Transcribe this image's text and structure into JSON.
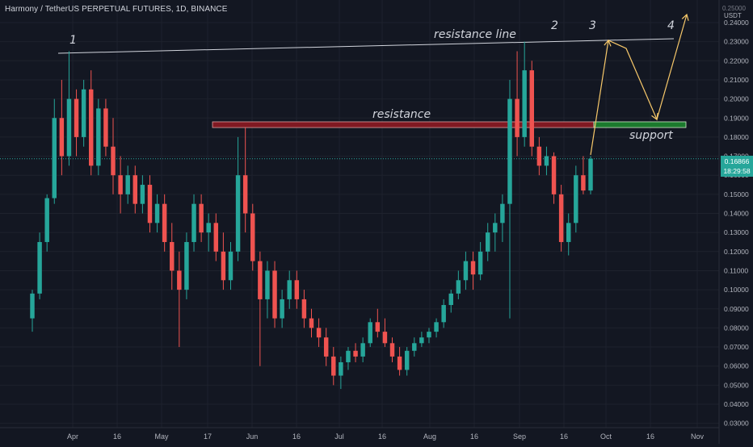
{
  "header": {
    "title": "Harmony / TetherUS PERPETUAL FUTURES, 1D, BINANCE"
  },
  "price_axis": {
    "unit": "USDT",
    "top_label": "0.25000",
    "last_price": "0.16866",
    "countdown": "18:29:58"
  },
  "colors": {
    "background": "#131722",
    "grid": "#1e222d",
    "up": "#26a69a",
    "down": "#ef5350",
    "annotation_arrow": "#f7c86a",
    "annotation_text": "#d1d4dc",
    "resistance_zone": "#801922",
    "support_zone": "#1b7a2d"
  },
  "annotations": {
    "wave_1": "1",
    "wave_2": "2",
    "wave_3": "3",
    "wave_4": "4",
    "resistance_line": "resistance line",
    "resistance": "resistance",
    "support": "support"
  },
  "chart_data": {
    "type": "candlestick",
    "title": "Harmony / TetherUS PERPETUAL FUTURES, 1D, BINANCE",
    "xlabel": "",
    "ylabel": "",
    "ylim": [
      0.03,
      0.25
    ],
    "y_ticks": [
      "0.24000",
      "0.23000",
      "0.22000",
      "0.21000",
      "0.20000",
      "0.19000",
      "0.18000",
      "0.17000",
      "0.16000",
      "0.15000",
      "0.14000",
      "0.13000",
      "0.12000",
      "0.11000",
      "0.10000",
      "0.09000",
      "0.08000",
      "0.07000",
      "0.06000",
      "0.05000",
      "0.04000",
      "0.03000"
    ],
    "x_ticks": [
      "Apr",
      "16",
      "May",
      "17",
      "Jun",
      "16",
      "Jul",
      "16",
      "Aug",
      "16",
      "Sep",
      "16",
      "Oct",
      "16",
      "Nov"
    ],
    "grid": true,
    "last_price": 0.16866,
    "resistance_line": {
      "from_price": 0.225,
      "to_price": 0.231
    },
    "resistance_zone": {
      "low": 0.185,
      "high": 0.188
    },
    "support_zone": {
      "low": 0.185,
      "high": 0.188
    },
    "candles_sampled": [
      {
        "o": 0.085,
        "h": 0.1,
        "l": 0.078,
        "c": 0.098
      },
      {
        "o": 0.098,
        "h": 0.13,
        "l": 0.095,
        "c": 0.125
      },
      {
        "o": 0.125,
        "h": 0.15,
        "l": 0.12,
        "c": 0.148
      },
      {
        "o": 0.148,
        "h": 0.2,
        "l": 0.145,
        "c": 0.19
      },
      {
        "o": 0.19,
        "h": 0.21,
        "l": 0.16,
        "c": 0.17
      },
      {
        "o": 0.17,
        "h": 0.225,
        "l": 0.165,
        "c": 0.2
      },
      {
        "o": 0.2,
        "h": 0.205,
        "l": 0.17,
        "c": 0.18
      },
      {
        "o": 0.18,
        "h": 0.21,
        "l": 0.175,
        "c": 0.205
      },
      {
        "o": 0.205,
        "h": 0.215,
        "l": 0.16,
        "c": 0.165
      },
      {
        "o": 0.165,
        "h": 0.2,
        "l": 0.16,
        "c": 0.195
      },
      {
        "o": 0.195,
        "h": 0.2,
        "l": 0.17,
        "c": 0.175
      },
      {
        "o": 0.175,
        "h": 0.19,
        "l": 0.15,
        "c": 0.16
      },
      {
        "o": 0.16,
        "h": 0.17,
        "l": 0.14,
        "c": 0.15
      },
      {
        "o": 0.15,
        "h": 0.165,
        "l": 0.145,
        "c": 0.16
      },
      {
        "o": 0.16,
        "h": 0.165,
        "l": 0.14,
        "c": 0.145
      },
      {
        "o": 0.145,
        "h": 0.16,
        "l": 0.14,
        "c": 0.155
      },
      {
        "o": 0.155,
        "h": 0.16,
        "l": 0.13,
        "c": 0.135
      },
      {
        "o": 0.135,
        "h": 0.15,
        "l": 0.13,
        "c": 0.145
      },
      {
        "o": 0.145,
        "h": 0.15,
        "l": 0.12,
        "c": 0.125
      },
      {
        "o": 0.125,
        "h": 0.135,
        "l": 0.1,
        "c": 0.11
      },
      {
        "o": 0.11,
        "h": 0.12,
        "l": 0.07,
        "c": 0.1
      },
      {
        "o": 0.1,
        "h": 0.13,
        "l": 0.095,
        "c": 0.125
      },
      {
        "o": 0.125,
        "h": 0.15,
        "l": 0.12,
        "c": 0.145
      },
      {
        "o": 0.145,
        "h": 0.15,
        "l": 0.125,
        "c": 0.13
      },
      {
        "o": 0.13,
        "h": 0.14,
        "l": 0.12,
        "c": 0.135
      },
      {
        "o": 0.135,
        "h": 0.14,
        "l": 0.115,
        "c": 0.12
      },
      {
        "o": 0.12,
        "h": 0.13,
        "l": 0.1,
        "c": 0.105
      },
      {
        "o": 0.105,
        "h": 0.125,
        "l": 0.1,
        "c": 0.12
      },
      {
        "o": 0.12,
        "h": 0.18,
        "l": 0.115,
        "c": 0.16
      },
      {
        "o": 0.16,
        "h": 0.185,
        "l": 0.13,
        "c": 0.14
      },
      {
        "o": 0.14,
        "h": 0.145,
        "l": 0.11,
        "c": 0.115
      },
      {
        "o": 0.115,
        "h": 0.12,
        "l": 0.06,
        "c": 0.095
      },
      {
        "o": 0.095,
        "h": 0.115,
        "l": 0.085,
        "c": 0.11
      },
      {
        "o": 0.11,
        "h": 0.115,
        "l": 0.08,
        "c": 0.085
      },
      {
        "o": 0.085,
        "h": 0.1,
        "l": 0.08,
        "c": 0.095
      },
      {
        "o": 0.095,
        "h": 0.11,
        "l": 0.09,
        "c": 0.105
      },
      {
        "o": 0.105,
        "h": 0.11,
        "l": 0.09,
        "c": 0.095
      },
      {
        "o": 0.095,
        "h": 0.1,
        "l": 0.08,
        "c": 0.085
      },
      {
        "o": 0.085,
        "h": 0.09,
        "l": 0.075,
        "c": 0.08
      },
      {
        "o": 0.08,
        "h": 0.085,
        "l": 0.07,
        "c": 0.075
      },
      {
        "o": 0.075,
        "h": 0.08,
        "l": 0.06,
        "c": 0.065
      },
      {
        "o": 0.065,
        "h": 0.07,
        "l": 0.05,
        "c": 0.055
      },
      {
        "o": 0.055,
        "h": 0.065,
        "l": 0.048,
        "c": 0.062
      },
      {
        "o": 0.062,
        "h": 0.07,
        "l": 0.058,
        "c": 0.068
      },
      {
        "o": 0.068,
        "h": 0.072,
        "l": 0.062,
        "c": 0.065
      },
      {
        "o": 0.065,
        "h": 0.075,
        "l": 0.062,
        "c": 0.072
      },
      {
        "o": 0.072,
        "h": 0.085,
        "l": 0.07,
        "c": 0.083
      },
      {
        "o": 0.083,
        "h": 0.09,
        "l": 0.075,
        "c": 0.078
      },
      {
        "o": 0.078,
        "h": 0.085,
        "l": 0.07,
        "c": 0.072
      },
      {
        "o": 0.072,
        "h": 0.075,
        "l": 0.062,
        "c": 0.065
      },
      {
        "o": 0.065,
        "h": 0.07,
        "l": 0.055,
        "c": 0.058
      },
      {
        "o": 0.058,
        "h": 0.07,
        "l": 0.055,
        "c": 0.068
      },
      {
        "o": 0.068,
        "h": 0.075,
        "l": 0.065,
        "c": 0.072
      },
      {
        "o": 0.072,
        "h": 0.078,
        "l": 0.07,
        "c": 0.075
      },
      {
        "o": 0.075,
        "h": 0.08,
        "l": 0.072,
        "c": 0.078
      },
      {
        "o": 0.078,
        "h": 0.085,
        "l": 0.075,
        "c": 0.083
      },
      {
        "o": 0.083,
        "h": 0.095,
        "l": 0.08,
        "c": 0.092
      },
      {
        "o": 0.092,
        "h": 0.1,
        "l": 0.088,
        "c": 0.098
      },
      {
        "o": 0.098,
        "h": 0.11,
        "l": 0.095,
        "c": 0.105
      },
      {
        "o": 0.105,
        "h": 0.12,
        "l": 0.1,
        "c": 0.115
      },
      {
        "o": 0.115,
        "h": 0.12,
        "l": 0.1,
        "c": 0.108
      },
      {
        "o": 0.108,
        "h": 0.125,
        "l": 0.105,
        "c": 0.12
      },
      {
        "o": 0.12,
        "h": 0.135,
        "l": 0.115,
        "c": 0.13
      },
      {
        "o": 0.13,
        "h": 0.14,
        "l": 0.12,
        "c": 0.135
      },
      {
        "o": 0.135,
        "h": 0.15,
        "l": 0.125,
        "c": 0.145
      },
      {
        "o": 0.145,
        "h": 0.21,
        "l": 0.085,
        "c": 0.2
      },
      {
        "o": 0.2,
        "h": 0.225,
        "l": 0.17,
        "c": 0.18
      },
      {
        "o": 0.18,
        "h": 0.23,
        "l": 0.175,
        "c": 0.215
      },
      {
        "o": 0.215,
        "h": 0.22,
        "l": 0.17,
        "c": 0.175
      },
      {
        "o": 0.175,
        "h": 0.18,
        "l": 0.16,
        "c": 0.165
      },
      {
        "o": 0.165,
        "h": 0.175,
        "l": 0.16,
        "c": 0.17
      },
      {
        "o": 0.17,
        "h": 0.172,
        "l": 0.145,
        "c": 0.15
      },
      {
        "o": 0.15,
        "h": 0.155,
        "l": 0.12,
        "c": 0.125
      },
      {
        "o": 0.125,
        "h": 0.14,
        "l": 0.118,
        "c": 0.135
      },
      {
        "o": 0.135,
        "h": 0.165,
        "l": 0.13,
        "c": 0.16
      },
      {
        "o": 0.16,
        "h": 0.17,
        "l": 0.15,
        "c": 0.152
      },
      {
        "o": 0.152,
        "h": 0.17,
        "l": 0.15,
        "c": 0.16866
      }
    ]
  }
}
